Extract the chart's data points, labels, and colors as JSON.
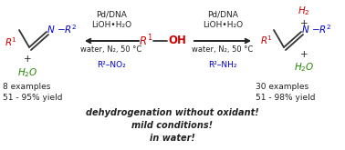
{
  "bg_color": "#ffffff",
  "examples_left": "8 examples",
  "yield_left": "51 - 95% yield",
  "examples_right": "30 examples",
  "yield_right": "51 - 98% yield",
  "catalyst_text": "Pd/DNA",
  "base_text": "LiOH•H₂O",
  "conditions_text": "water, N₂, 50 °C",
  "reagent_left": "R²–NO₂",
  "reagent_right": "R²–NH₂",
  "bottom1": "dehydrogenation without oxidant!",
  "bottom2": "mild conditions!",
  "bottom3": "in water!",
  "red": "#cc0000",
  "blue": "#0000cc",
  "green": "#228800",
  "black": "#222222",
  "bond": "#333333"
}
